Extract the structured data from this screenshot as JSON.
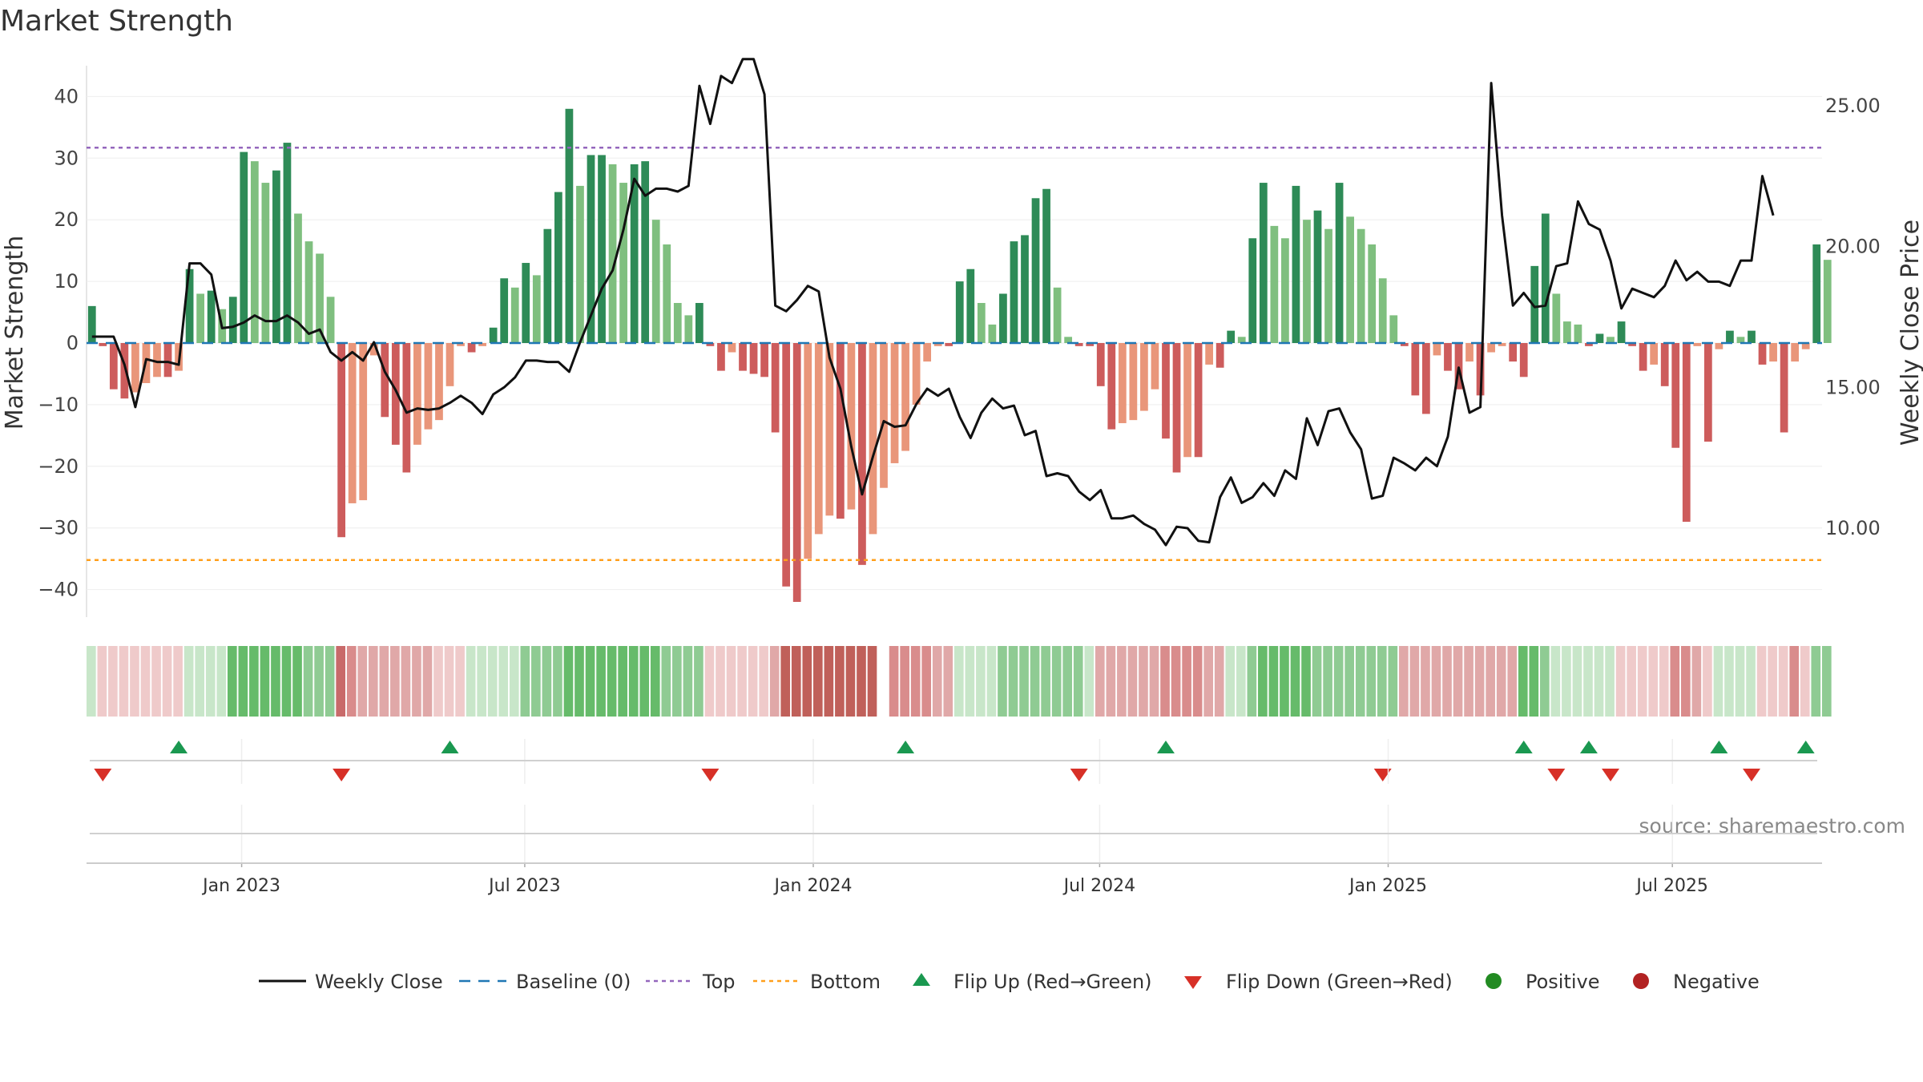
{
  "chart_data": {
    "type": "bar",
    "title": "Market Strength",
    "ylabel": "Market Strength",
    "y2label": "Weekly Close Price",
    "source": "source: sharemaestro.com",
    "ylim": [
      -45,
      45
    ],
    "y2lim": [
      7.4,
      27.1
    ],
    "yticks": [
      40,
      30,
      20,
      10,
      0,
      -10,
      -20,
      -30,
      -40
    ],
    "ytick_labels": [
      "40",
      "30",
      "20",
      "10",
      "0",
      "−10",
      "−20",
      "−30",
      "−40"
    ],
    "y2ticks": [
      25,
      20,
      15,
      10
    ],
    "y2tick_labels": [
      "25.00",
      "20.00",
      "15.00",
      "10.00"
    ],
    "top_line": 31.7,
    "bottom_line": -35.2,
    "x_start_week": 0,
    "x_end_week": 160.0,
    "xticks": [
      {
        "label": "Jan 2023",
        "week": 14.3
      },
      {
        "label": "Jul 2023",
        "week": 40.4
      },
      {
        "label": "Jan 2024",
        "week": 67.0
      },
      {
        "label": "Jul 2024",
        "week": 93.4
      },
      {
        "label": "Jan 2025",
        "week": 120.0
      },
      {
        "label": "Jul 2025",
        "week": 146.2
      }
    ],
    "strength": [
      6,
      -0.5,
      -7.5,
      -9,
      -8,
      -6.5,
      -5.5,
      -5.5,
      -4.5,
      12,
      8,
      8.5,
      5.5,
      7.5,
      31,
      29.5,
      26,
      28,
      32.5,
      21,
      16.5,
      14.5,
      7.5,
      -31.5,
      -26,
      -25.5,
      -2,
      -12,
      -16.5,
      -21,
      -16.5,
      -14,
      -12.5,
      -7,
      -0.5,
      -1.5,
      -0.5,
      2.5,
      10.5,
      9,
      13,
      11,
      18.5,
      24.5,
      38,
      25.5,
      30.5,
      30.5,
      29,
      26,
      29,
      29.5,
      20,
      16,
      6.5,
      4.5,
      6.5,
      -0.5,
      -4.5,
      -1.5,
      -4.5,
      -5,
      -5.5,
      -14.5,
      -39.5,
      -42,
      -35,
      -31,
      -28,
      -28.5,
      -27,
      -36,
      -31,
      -23.5,
      -19.5,
      -17.5,
      -10,
      -3,
      -0.5,
      -0.5,
      10,
      12,
      6.5,
      3,
      8,
      16.5,
      17.5,
      23.5,
      25,
      9,
      1,
      -0.5,
      -0.5,
      -7,
      -14,
      -13,
      -12.5,
      -11,
      -7.5,
      -15.5,
      -21,
      -18.5,
      -18.5,
      -3.5,
      -4,
      2,
      1,
      17,
      26,
      19,
      17,
      25.5,
      20,
      21.5,
      18.5,
      26,
      20.5,
      18.5,
      16,
      10.5,
      4.5,
      -0.5,
      -8.5,
      -11.5,
      -2,
      -4.5,
      -7.5,
      -3,
      -8.5,
      -1.5,
      -0.5,
      -3,
      -5.5,
      12.5,
      21,
      8,
      3.5,
      3,
      -0.5,
      1.5,
      1,
      3.5,
      -0.5,
      -4.5,
      -3.5,
      -7,
      -17,
      -29,
      -0.5,
      -16,
      -1,
      2,
      1,
      2,
      -3.5,
      -3,
      -14.5,
      -3,
      -1,
      16,
      13.5
    ],
    "price": [
      16.8,
      16.8,
      16.8,
      15.8,
      14.3,
      16,
      15.9,
      15.9,
      15.8,
      19.4,
      19.4,
      19,
      17.1,
      17.15,
      17.3,
      17.55,
      17.35,
      17.35,
      17.55,
      17.3,
      16.9,
      17.05,
      16.25,
      15.95,
      16.25,
      15.95,
      16.6,
      15.55,
      14.9,
      14.1,
      14.25,
      14.2,
      14.25,
      14.45,
      14.7,
      14.45,
      14.05,
      14.75,
      15,
      15.35,
      15.95,
      15.95,
      15.9,
      15.9,
      15.55,
      16.6,
      17.55,
      18.5,
      19.15,
      20.6,
      22.4,
      21.8,
      22.05,
      22.05,
      21.95,
      22.15,
      25.7,
      24.35,
      26.05,
      25.8,
      26.65,
      26.65,
      25.4,
      17.9,
      17.7,
      18.1,
      18.6,
      18.4,
      16.05,
      14.95,
      12.9,
      11.2,
      12.55,
      13.8,
      13.6,
      13.65,
      14.4,
      14.95,
      14.7,
      14.95,
      13.95,
      13.2,
      14.1,
      14.6,
      14.25,
      14.35,
      13.3,
      13.45,
      11.85,
      11.95,
      11.85,
      11.3,
      11,
      11.35,
      10.35,
      10.35,
      10.45,
      10.15,
      9.95,
      9.4,
      10.05,
      10,
      9.55,
      9.5,
      11.1,
      11.8,
      10.9,
      11.1,
      11.6,
      11.15,
      12.05,
      11.75,
      13.9,
      12.95,
      14.15,
      14.25,
      13.4,
      12.8,
      11.05,
      11.15,
      12.5,
      12.3,
      12.05,
      12.5,
      12.2,
      13.25,
      15.7,
      14.1,
      14.3,
      25.8,
      21.1,
      17.9,
      18.35,
      17.85,
      17.9,
      19.3,
      19.4,
      21.6,
      20.8,
      20.6,
      19.5,
      17.8,
      18.5,
      18.35,
      18.2,
      18.6,
      19.5,
      18.8,
      19.1,
      18.75,
      18.75,
      18.6,
      19.5,
      19.5,
      22.5,
      21.1
    ],
    "regime_shades": [
      "g1",
      "r1",
      "r1",
      "r1",
      "r1",
      "r1",
      "r1",
      "r1",
      "r1",
      "g1",
      "g1",
      "g1",
      "g1",
      "g3",
      "g3",
      "g3",
      "g3",
      "g3",
      "g3",
      "g3",
      "g2",
      "g2",
      "g2",
      "r4",
      "r3",
      "r2",
      "r2",
      "r2",
      "r2",
      "r2",
      "r2",
      "r2",
      "r1",
      "r1",
      "r1",
      "g1",
      "g1",
      "g1",
      "g1",
      "g1",
      "g2",
      "g2",
      "g2",
      "g2",
      "g3",
      "g3",
      "g3",
      "g3",
      "g3",
      "g3",
      "g3",
      "g3",
      "g3",
      "g2",
      "g2",
      "g2",
      "g2",
      "r1",
      "r1",
      "r1",
      "r1",
      "r1",
      "r1",
      "r2",
      "r5",
      "r5",
      "r5",
      "r5",
      "r5",
      "r5",
      "r5",
      "r5",
      "r5",
      "x",
      "r3",
      "r3",
      "r3",
      "r3",
      "r2",
      "r2",
      "g1",
      "g1",
      "g1",
      "g1",
      "g2",
      "g2",
      "g2",
      "g2",
      "g2",
      "g2",
      "g2",
      "g2",
      "g1",
      "r2",
      "r2",
      "r2",
      "r2",
      "r2",
      "r2",
      "r3",
      "r3",
      "r3",
      "r3",
      "r2",
      "r2",
      "g1",
      "g1",
      "g2",
      "g3",
      "g3",
      "g3",
      "g3",
      "g3",
      "g2",
      "g2",
      "g2",
      "g2",
      "g2",
      "g2",
      "g2",
      "g2",
      "r2",
      "r2",
      "r2",
      "r2",
      "r2",
      "r2",
      "r2",
      "r2",
      "r2",
      "r2",
      "r2",
      "g3",
      "g3",
      "g2",
      "g1",
      "g1",
      "g1",
      "g1",
      "g1",
      "g1",
      "r1",
      "r1",
      "r1",
      "r1",
      "r1",
      "r3",
      "r3",
      "r2",
      "r1",
      "g1",
      "g1",
      "g1",
      "g1",
      "r1",
      "r1",
      "r1",
      "r3",
      "r1",
      "g2",
      "g2"
    ],
    "flip_up_weeks": [
      8.5,
      33.5,
      75.5,
      99.5,
      132.5,
      138.5,
      150.5,
      158.5
    ],
    "flip_down_weeks": [
      1.5,
      23.5,
      57.5,
      91.5,
      119.5,
      135.5,
      140.5,
      153.5
    ],
    "legend": [
      {
        "key": "weekly_close",
        "label": "Weekly Close"
      },
      {
        "key": "baseline",
        "label": "Baseline (0)"
      },
      {
        "key": "top",
        "label": "Top"
      },
      {
        "key": "bottom",
        "label": "Bottom"
      },
      {
        "key": "flip_up",
        "label": "Flip Up (Red→Green)"
      },
      {
        "key": "flip_down",
        "label": "Flip Down (Green→Red)"
      },
      {
        "key": "positive",
        "label": "Positive"
      },
      {
        "key": "negative",
        "label": "Negative"
      }
    ]
  },
  "colors": {
    "pos_dark": "#2e8b57",
    "pos_light": "#7fbf7f",
    "neg_dark": "#cd5c5c",
    "neg_light": "#e9967a",
    "price_line": "#111111",
    "baseline": "#1f77b4",
    "top_line": "#9467bd",
    "bottom_line": "#ff9f1c",
    "flip_up": "#1a9850",
    "flip_down": "#d73027",
    "positive_dot": "#228b22",
    "negative_dot": "#b22222",
    "g1": "#c8e6c9",
    "g2": "#8fcb93",
    "g3": "#66bb6a",
    "r1": "#efcaca",
    "r2": "#e0a8a8",
    "r3": "#d98c8c",
    "r4": "#c96a6a",
    "r5": "#c0605a",
    "x": "#ffffff",
    "grid": "#eeeeee",
    "axis": "#cccccc"
  }
}
